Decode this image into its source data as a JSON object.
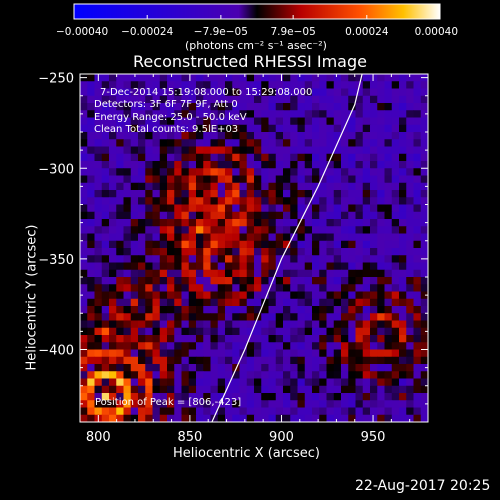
{
  "chart_data": {
    "type": "heatmap",
    "title": "Reconstructed RHESSI Image",
    "xlabel": "Heliocentric X (arcsec)",
    "ylabel": "Heliocentric Y (arcsec)",
    "xlim": [
      790,
      980
    ],
    "ylim": [
      -440,
      -248
    ],
    "x_ticks": [
      800,
      850,
      900,
      950
    ],
    "x_tick_labels": [
      "800",
      "850",
      "900",
      "950"
    ],
    "y_ticks": [
      -250,
      -300,
      -350,
      -400
    ],
    "y_tick_labels": [
      "−250",
      "−300",
      "−350",
      "−400"
    ],
    "colorbar": {
      "min": -0.0004,
      "max": 0.0004,
      "ticks": [
        -0.0004,
        -0.00024,
        -7.9e-05,
        7.9e-05,
        0.00024,
        0.0004
      ],
      "tick_labels": [
        "−0.00040",
        "−0.00024",
        "−7.9e−05",
        "7.9e−05",
        "0.00024",
        "0.00040"
      ],
      "unit_label": "(photons cm⁻² s⁻¹ asec⁻²)",
      "colormap": "blue-purple-red-yellow-white"
    },
    "sources": [
      {
        "x": 805,
        "y": -425,
        "peak": 0.0004
      },
      {
        "x": 862,
        "y": -312,
        "peak": 0.00024
      },
      {
        "x": 870,
        "y": -350,
        "peak": 0.0002
      },
      {
        "x": 955,
        "y": -393,
        "peak": 0.0002
      },
      {
        "x": 820,
        "y": -375,
        "peak": 0.00015
      }
    ],
    "limb_curve": [
      [
        862,
        -440
      ],
      [
        880,
        -400
      ],
      [
        900,
        -350
      ],
      [
        920,
        -310
      ],
      [
        940,
        -265
      ],
      [
        944,
        -248
      ]
    ],
    "grid": false,
    "legend": "none"
  },
  "annotations": {
    "time_range": "7-Dec-2014 15:19:08.000 to 15:29:08.000",
    "detectors": "Detectors: 3F 6F 7F 9F, Att 0",
    "energy": "Energy Range: 25.0 - 50.0 keV",
    "clean": "Clean     Total counts: 9.5lE+03",
    "peak": "Position of Peak = [806,-423]"
  },
  "footer_date": "22-Aug-2017 20:25"
}
